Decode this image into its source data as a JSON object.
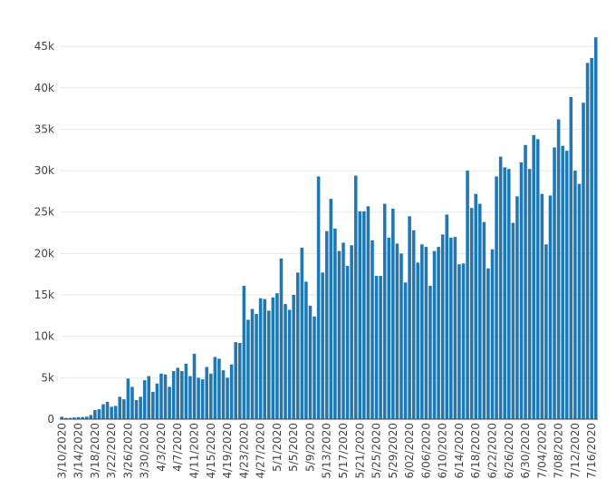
{
  "chart_data": {
    "type": "bar",
    "title": "",
    "xlabel": "",
    "ylabel": "",
    "ylim": [
      0,
      46000
    ],
    "grid": true,
    "bar_color": "#1f77b4",
    "y_ticks": [
      0,
      5000,
      10000,
      15000,
      20000,
      25000,
      30000,
      35000,
      40000,
      45000
    ],
    "y_tick_labels": [
      "0",
      "5k",
      "10k",
      "15k",
      "20k",
      "25k",
      "30k",
      "35k",
      "40k",
      "45k"
    ],
    "x_tick_labels": [
      "3/10/2020",
      "3/14/2020",
      "3/18/2020",
      "3/22/2020",
      "3/26/2020",
      "3/30/2020",
      "4/3/2020",
      "4/7/2020",
      "4/11/2020",
      "4/15/2020",
      "4/19/2020",
      "4/23/2020",
      "4/27/2020",
      "5/1/2020",
      "5/5/2020",
      "5/9/2020",
      "5/13/2020",
      "5/17/2020",
      "5/21/2020",
      "5/25/2020",
      "5/29/2020",
      "6/02/2020",
      "6/06/2020",
      "6/10/2020",
      "6/14/2020",
      "6/18/2020",
      "6/22/2020",
      "6/26/2020",
      "6/30/2020",
      "7/04/2020",
      "7/08/2020",
      "7/12/2020",
      "7/16/2020"
    ],
    "start_date": "3/10/2020",
    "values": [
      300,
      150,
      150,
      200,
      250,
      250,
      300,
      500,
      1100,
      1200,
      1800,
      2100,
      1500,
      1600,
      2700,
      2400,
      4900,
      3900,
      2300,
      2700,
      4700,
      5200,
      3300,
      4300,
      5500,
      5400,
      3900,
      5800,
      6200,
      5800,
      6700,
      5200,
      7900,
      5000,
      4800,
      6300,
      5500,
      7500,
      7300,
      5900,
      5000,
      6600,
      9300,
      9200,
      16100,
      12000,
      13300,
      12700,
      14600,
      14500,
      13100,
      14700,
      15200,
      19400,
      13900,
      13200,
      15000,
      17700,
      20700,
      16600,
      13700,
      12400,
      29300,
      17700,
      22700,
      26600,
      23000,
      20300,
      21300,
      18500,
      21000,
      29400,
      25100,
      25100,
      25700,
      21600,
      17300,
      17300,
      26000,
      21900,
      25400,
      21200,
      20000,
      16500,
      24500,
      22800,
      18900,
      21100,
      20800,
      16100,
      20300,
      20800,
      22300,
      24700,
      21900,
      22000,
      18700,
      18800,
      30000,
      25500,
      27200,
      26000,
      23800,
      18200,
      20500,
      29300,
      31700,
      30400,
      30200,
      23700,
      26900,
      31000,
      33100,
      30200,
      34300,
      33800,
      27200,
      21100,
      27000,
      32800,
      36200,
      33000,
      32400,
      38900,
      30000,
      28400,
      38200,
      43000,
      43600,
      46100
    ]
  }
}
